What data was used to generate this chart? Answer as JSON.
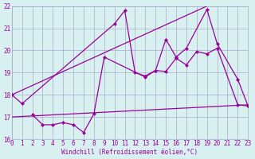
{
  "bg_color": "#d8f0f0",
  "grid_color": "#aaaacc",
  "line_color": "#990099",
  "xlim": [
    0,
    23
  ],
  "ylim": [
    16,
    22
  ],
  "xlabel": "Windchill (Refroidissement éolien,°C)",
  "yticks": [
    16,
    17,
    18,
    19,
    20,
    21,
    22
  ],
  "xticks": [
    0,
    1,
    2,
    3,
    4,
    5,
    6,
    7,
    8,
    9,
    10,
    11,
    12,
    13,
    14,
    15,
    16,
    17,
    18,
    19,
    20,
    21,
    22,
    23
  ],
  "line1_x": [
    0,
    19
  ],
  "line1_y": [
    18.0,
    22.0
  ],
  "line2_x": [
    0,
    23
  ],
  "line2_y": [
    17.0,
    17.55
  ],
  "line3_x": [
    0,
    1,
    10,
    11,
    12,
    13,
    14,
    15,
    16,
    17,
    19,
    20,
    22,
    23
  ],
  "line3_y": [
    18.0,
    17.6,
    21.2,
    21.8,
    19.0,
    18.85,
    19.1,
    20.5,
    19.7,
    20.1,
    21.85,
    20.3,
    18.7,
    17.5
  ],
  "line4_x": [
    2,
    3,
    4,
    5,
    6,
    7,
    8,
    9,
    13,
    14,
    15,
    16,
    17,
    18,
    19,
    20,
    22,
    23
  ],
  "line4_y": [
    17.1,
    16.65,
    16.65,
    16.75,
    16.65,
    16.3,
    17.15,
    19.7,
    18.8,
    19.1,
    19.05,
    19.65,
    19.35,
    19.95,
    19.85,
    20.1,
    17.55,
    17.5
  ]
}
